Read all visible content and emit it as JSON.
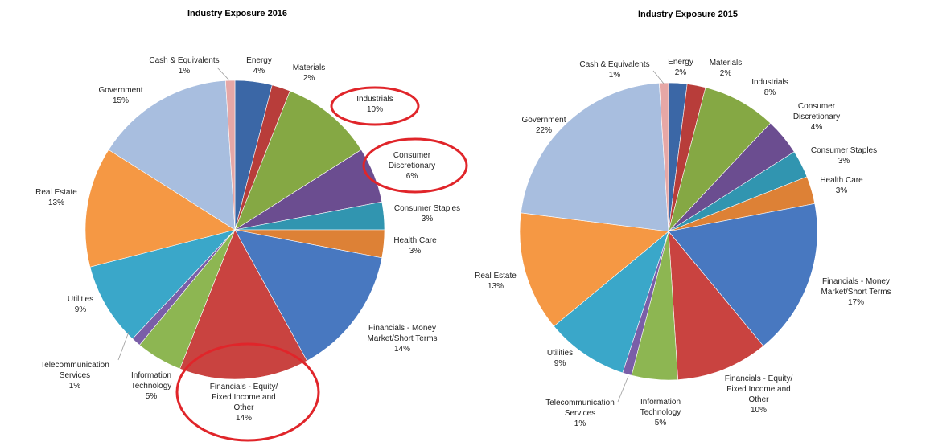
{
  "chart_data": [
    {
      "type": "pie",
      "title": "Industry Exposure 2016",
      "slices": [
        {
          "label": "Energy",
          "value": 4,
          "value_label": "4%",
          "color": "#3b67a6"
        },
        {
          "label": "Materials",
          "value": 2,
          "value_label": "2%",
          "color": "#b83d3a"
        },
        {
          "label": "Industrials",
          "value": 10,
          "value_label": "10%",
          "color": "#85a844"
        },
        {
          "label": "Consumer Discretionary",
          "value": 6,
          "value_label": "6%",
          "color": "#6b4d90"
        },
        {
          "label": "Consumer Staples",
          "value": 3,
          "value_label": "3%",
          "color": "#3195b0"
        },
        {
          "label": "Health Care",
          "value": 3,
          "value_label": "3%",
          "color": "#dd8136"
        },
        {
          "label": "Financials - Money Market/Short Terms",
          "value": 14,
          "value_label": "14%",
          "color": "#4878c0"
        },
        {
          "label": "Financials - Equity/ Fixed Income and Other",
          "value": 14,
          "value_label": "14%",
          "color": "#c94340"
        },
        {
          "label": "Information Technology",
          "value": 5,
          "value_label": "5%",
          "color": "#8db652"
        },
        {
          "label": "Telecommunication Services",
          "value": 1,
          "value_label": "1%",
          "color": "#7a5ea8"
        },
        {
          "label": "Utilities",
          "value": 9,
          "value_label": "9%",
          "color": "#3aa7c9"
        },
        {
          "label": "Real Estate",
          "value": 13,
          "value_label": "13%",
          "color": "#f59844"
        },
        {
          "label": "Government",
          "value": 15,
          "value_label": "15%",
          "color": "#a8bedf"
        },
        {
          "label": "Cash & Equivalents",
          "value": 1,
          "value_label": "1%",
          "color": "#e6a7a6"
        }
      ],
      "annotations": [
        {
          "type": "circle",
          "target": "Industrials",
          "color": "#e0252a"
        },
        {
          "type": "circle",
          "target": "Consumer Discretionary",
          "color": "#e0252a"
        },
        {
          "type": "circle",
          "target": "Financials - Equity/ Fixed Income and Other",
          "color": "#e0252a"
        }
      ]
    },
    {
      "type": "pie",
      "title": "Industry Exposure 2015",
      "slices": [
        {
          "label": "Energy",
          "value": 2,
          "value_label": "2%",
          "color": "#3b67a6"
        },
        {
          "label": "Materials",
          "value": 2,
          "value_label": "2%",
          "color": "#b83d3a"
        },
        {
          "label": "Industrials",
          "value": 8,
          "value_label": "8%",
          "color": "#85a844"
        },
        {
          "label": "Consumer Discretionary",
          "value": 4,
          "value_label": "4%",
          "color": "#6b4d90"
        },
        {
          "label": "Consumer Staples",
          "value": 3,
          "value_label": "3%",
          "color": "#3195b0"
        },
        {
          "label": "Health Care",
          "value": 3,
          "value_label": "3%",
          "color": "#dd8136"
        },
        {
          "label": "Financials - Money Market/Short Terms",
          "value": 17,
          "value_label": "17%",
          "color": "#4878c0"
        },
        {
          "label": "Financials - Equity/ Fixed Income and Other",
          "value": 10,
          "value_label": "10%",
          "color": "#c94340"
        },
        {
          "label": "Information Technology",
          "value": 5,
          "value_label": "5%",
          "color": "#8db652"
        },
        {
          "label": "Telecommunication Services",
          "value": 1,
          "value_label": "1%",
          "color": "#7a5ea8"
        },
        {
          "label": "Utilities",
          "value": 9,
          "value_label": "9%",
          "color": "#3aa7c9"
        },
        {
          "label": "Real Estate",
          "value": 13,
          "value_label": "13%",
          "color": "#f59844"
        },
        {
          "label": "Government",
          "value": 22,
          "value_label": "22%",
          "color": "#a8bedf"
        },
        {
          "label": "Cash & Equivalents",
          "value": 1,
          "value_label": "1%",
          "color": "#e6a7a6"
        }
      ],
      "annotations": []
    }
  ]
}
